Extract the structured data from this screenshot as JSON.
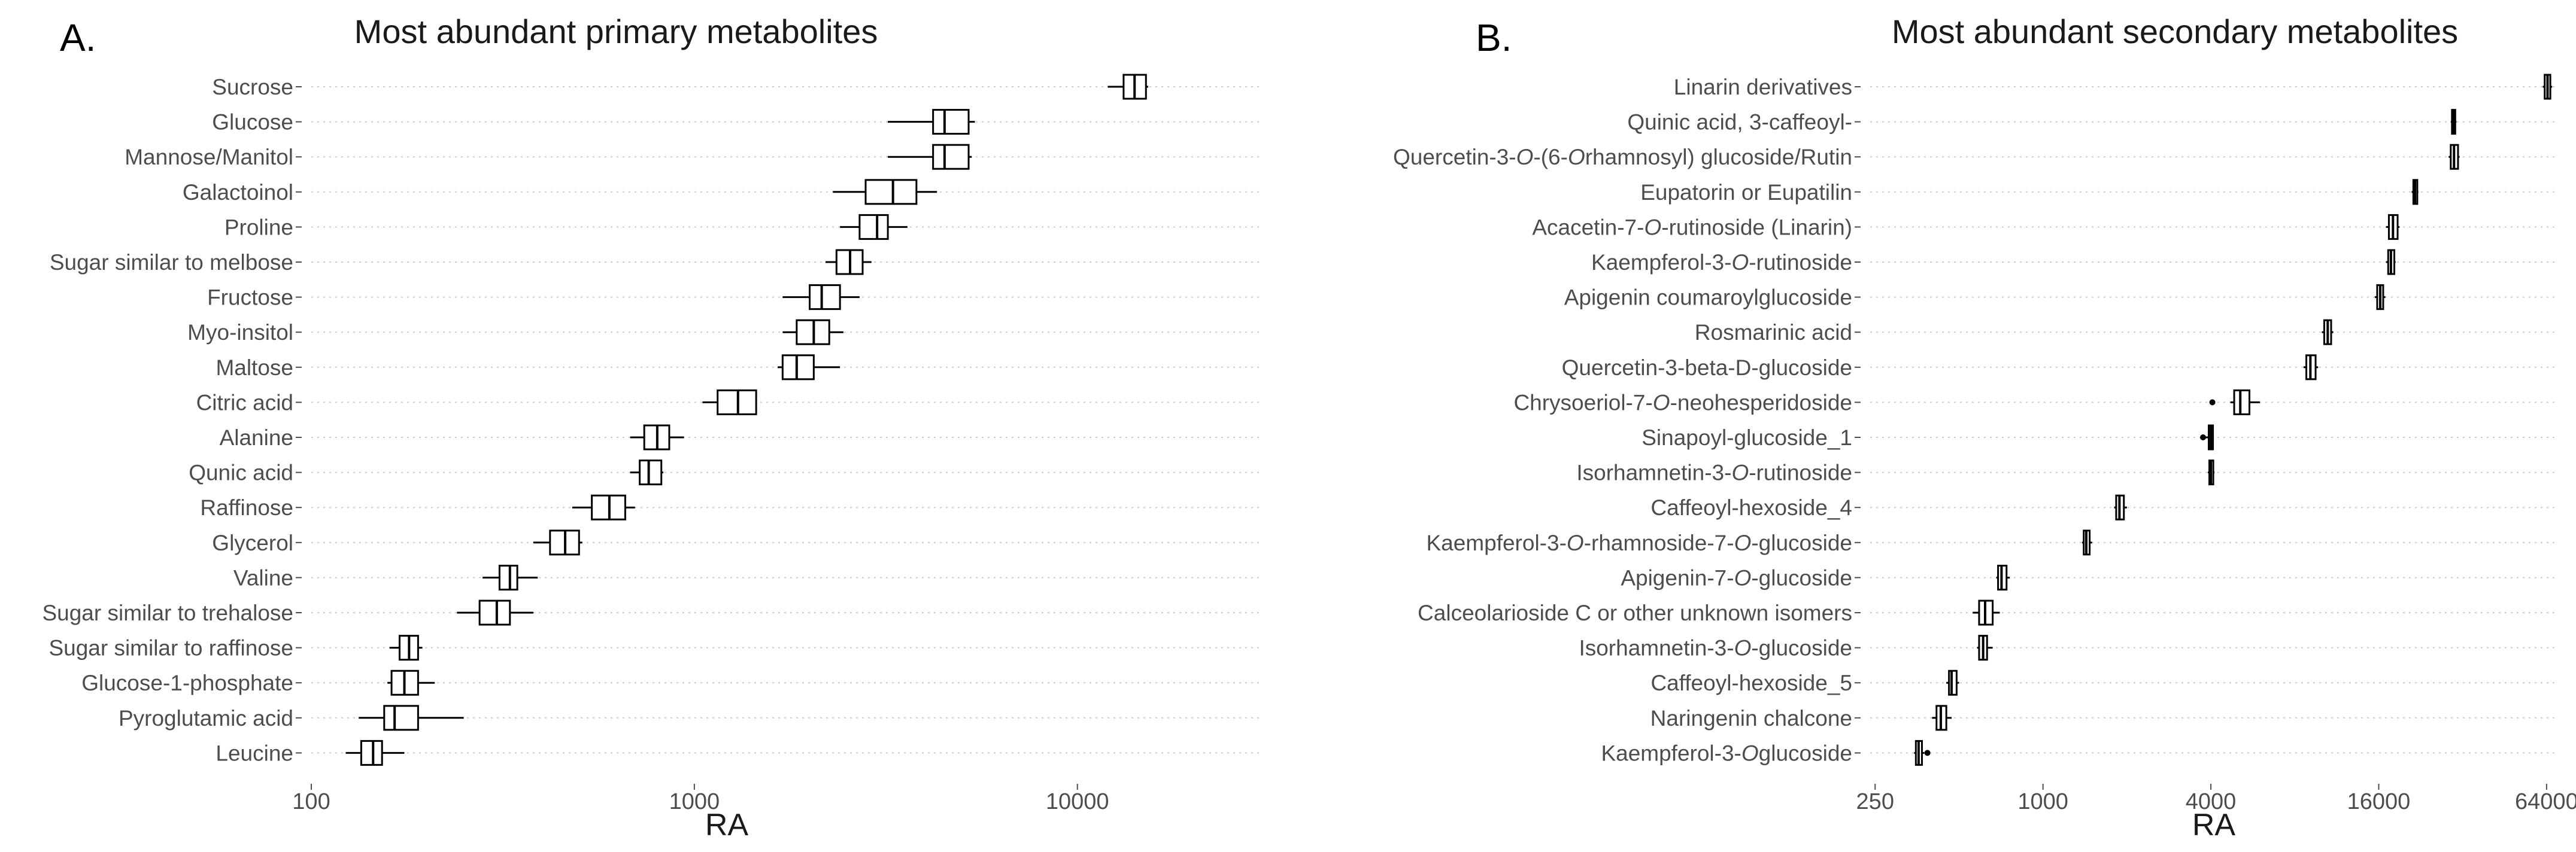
{
  "colors": {
    "background": "#ffffff",
    "grid": "#cccccc",
    "box_fill": "#ffffff",
    "box_stroke": "#000000",
    "text_dark": "#1a1a1a",
    "text_label": "#4d4d4d"
  },
  "chart_data": [
    {
      "type": "boxplot",
      "panel_label": "A.",
      "title": "Most abundant primary metabolites",
      "xlabel": "RA",
      "ylabel": "",
      "x_scale": "log10",
      "xlim": [
        100,
        30000
      ],
      "x_ticks": [
        100,
        1000,
        10000
      ],
      "x_tick_labels": [
        "100",
        "1000",
        "10000"
      ],
      "grid": "horizontal dotted",
      "categories": [
        "Sucrose",
        "Glucose",
        "Mannose/Manitol",
        "Galactoinol",
        "Proline",
        "Sugar similar to melbose",
        "Fructose",
        "Myo-insitol",
        "Maltose",
        "Citric acid",
        "Alanine",
        "Qunic acid",
        "Raffinose",
        "Glycerol",
        "Valine",
        "Sugar similar to trehalose",
        "Sugar similar to raffinose",
        "Glucose-1-phosphate",
        "Pyroglutamic acid",
        "Leucine"
      ],
      "boxes": [
        {
          "min": 12000,
          "q1": 13200,
          "median": 14100,
          "q3": 15100,
          "max": 15300,
          "outliers": []
        },
        {
          "min": 3200,
          "q1": 4200,
          "median": 4500,
          "q3": 5200,
          "max": 5400,
          "outliers": []
        },
        {
          "min": 3200,
          "q1": 4200,
          "median": 4500,
          "q3": 5200,
          "max": 5300,
          "outliers": []
        },
        {
          "min": 2300,
          "q1": 2800,
          "median": 3300,
          "q3": 3800,
          "max": 4300,
          "outliers": []
        },
        {
          "min": 2400,
          "q1": 2700,
          "median": 3000,
          "q3": 3200,
          "max": 3600,
          "outliers": []
        },
        {
          "min": 2200,
          "q1": 2350,
          "median": 2550,
          "q3": 2750,
          "max": 2900,
          "outliers": []
        },
        {
          "min": 1700,
          "q1": 2000,
          "median": 2150,
          "q3": 2400,
          "max": 2700,
          "outliers": []
        },
        {
          "min": 1700,
          "q1": 1850,
          "median": 2050,
          "q3": 2250,
          "max": 2450,
          "outliers": []
        },
        {
          "min": 1650,
          "q1": 1700,
          "median": 1850,
          "q3": 2050,
          "max": 2400,
          "outliers": []
        },
        {
          "min": 1050,
          "q1": 1150,
          "median": 1300,
          "q3": 1450,
          "max": 1450,
          "outliers": []
        },
        {
          "min": 680,
          "q1": 740,
          "median": 800,
          "q3": 860,
          "max": 940,
          "outliers": []
        },
        {
          "min": 680,
          "q1": 720,
          "median": 760,
          "q3": 820,
          "max": 830,
          "outliers": []
        },
        {
          "min": 480,
          "q1": 540,
          "median": 600,
          "q3": 660,
          "max": 700,
          "outliers": []
        },
        {
          "min": 380,
          "q1": 420,
          "median": 460,
          "q3": 500,
          "max": 510,
          "outliers": []
        },
        {
          "min": 280,
          "q1": 310,
          "median": 330,
          "q3": 345,
          "max": 390,
          "outliers": []
        },
        {
          "min": 240,
          "q1": 275,
          "median": 305,
          "q3": 330,
          "max": 380,
          "outliers": []
        },
        {
          "min": 160,
          "q1": 170,
          "median": 180,
          "q3": 190,
          "max": 195,
          "outliers": []
        },
        {
          "min": 158,
          "q1": 162,
          "median": 175,
          "q3": 190,
          "max": 210,
          "outliers": []
        },
        {
          "min": 133,
          "q1": 155,
          "median": 165,
          "q3": 190,
          "max": 250,
          "outliers": []
        },
        {
          "min": 123,
          "q1": 135,
          "median": 145,
          "q3": 153,
          "max": 175,
          "outliers": []
        }
      ]
    },
    {
      "type": "boxplot",
      "panel_label": "B.",
      "title": "Most abundant secondary metabolites",
      "xlabel": "RA",
      "ylabel": "",
      "x_scale": "log2",
      "xlim": [
        240,
        70000
      ],
      "x_ticks": [
        250,
        1000,
        4000,
        16000,
        64000
      ],
      "x_tick_labels": [
        "250",
        "1000",
        "4000",
        "16000",
        "64000"
      ],
      "grid": "horizontal dotted",
      "categories": [
        "Linarin derivatives",
        "Quinic acid, 3-caffeoyl-",
        "Quercetin-3-O-(6-O-rhamnosyl) glucoside/Rutin",
        "Eupatorin or Eupatilin",
        "Acacetin-7-O-rutinoside (Linarin)",
        "Kaempferol-3-O-rutinoside",
        "Apigenin coumaroylglucoside",
        "Rosmarinic acid",
        "Quercetin-3-beta-D-glucoside",
        "Chrysoeriol-7-O-neohesperidoside",
        "Sinapoyl-glucoside_1",
        "Isorhamnetin-3-O-rutinoside",
        "Caffeoyl-hexoside_4",
        "Kaempferol-3-O-rhamnoside-7-O-glucoside",
        "Apigenin-7-O-glucoside",
        "Calceolarioside C or other unknown isomers",
        "Isorhamnetin-3-O-glucoside",
        "Caffeoyl-hexoside_5",
        "Naringenin chalcone",
        "Kaempferol-3-O-glucoside"
      ],
      "category_labels": [
        [
          {
            "t": "Linarin derivatives"
          }
        ],
        [
          {
            "t": "Quinic acid, 3-caffeoyl-"
          }
        ],
        [
          {
            "t": "Quercetin-3-"
          },
          {
            "t": "O",
            "i": true
          },
          {
            "t": "-(6-"
          },
          {
            "t": "O",
            "i": true
          },
          {
            "t": "rhamnosyl) glucoside/Rutin"
          }
        ],
        [
          {
            "t": "Eupatorin or Eupatilin"
          }
        ],
        [
          {
            "t": "Acacetin-7-"
          },
          {
            "t": "O",
            "i": true
          },
          {
            "t": "-rutinoside (Linarin)"
          }
        ],
        [
          {
            "t": "Kaempferol-3-"
          },
          {
            "t": "O",
            "i": true
          },
          {
            "t": "-rutinoside"
          }
        ],
        [
          {
            "t": "Apigenin coumaroylglucoside"
          }
        ],
        [
          {
            "t": "Rosmarinic acid"
          }
        ],
        [
          {
            "t": "Quercetin-3-beta-D-glucoside"
          }
        ],
        [
          {
            "t": "Chrysoeriol-7-"
          },
          {
            "t": "O",
            "i": true
          },
          {
            "t": "-neohesperidoside"
          }
        ],
        [
          {
            "t": "Sinapoyl-glucoside_1"
          }
        ],
        [
          {
            "t": "Isorhamnetin-3-"
          },
          {
            "t": "O",
            "i": true
          },
          {
            "t": "-rutinoside"
          }
        ],
        [
          {
            "t": "Caffeoyl-hexoside_4"
          }
        ],
        [
          {
            "t": "Kaempferol-3-"
          },
          {
            "t": "O",
            "i": true
          },
          {
            "t": "-rhamnoside-7-"
          },
          {
            "t": "O",
            "i": true
          },
          {
            "t": "-glucoside"
          }
        ],
        [
          {
            "t": "Apigenin-7-"
          },
          {
            "t": "O",
            "i": true
          },
          {
            "t": "-glucoside"
          }
        ],
        [
          {
            "t": "Calceolarioside C or other unknown isomers"
          }
        ],
        [
          {
            "t": "Isorhamnetin-3-"
          },
          {
            "t": "O",
            "i": true
          },
          {
            "t": "-glucoside"
          }
        ],
        [
          {
            "t": "Caffeoyl-hexoside_5"
          }
        ],
        [
          {
            "t": "Naringenin chalcone"
          }
        ],
        [
          {
            "t": "Kaempferol-3-"
          },
          {
            "t": "O",
            "i": true
          },
          {
            "t": "glucoside"
          }
        ]
      ],
      "boxes": [
        {
          "min": 62000,
          "q1": 63000,
          "median": 64500,
          "q3": 66000,
          "max": 67000,
          "outliers": []
        },
        {
          "min": 29000,
          "q1": 29300,
          "median": 29700,
          "q3": 30100,
          "max": 30400,
          "outliers": []
        },
        {
          "min": 28500,
          "q1": 29000,
          "median": 29800,
          "q3": 30800,
          "max": 31200,
          "outliers": []
        },
        {
          "min": 21000,
          "q1": 21300,
          "median": 21600,
          "q3": 22000,
          "max": 22200,
          "outliers": []
        },
        {
          "min": 17000,
          "q1": 17400,
          "median": 18000,
          "q3": 18700,
          "max": 19000,
          "outliers": []
        },
        {
          "min": 17000,
          "q1": 17300,
          "median": 17700,
          "q3": 18200,
          "max": 18400,
          "outliers": []
        },
        {
          "min": 15500,
          "q1": 15800,
          "median": 16200,
          "q3": 16600,
          "max": 16900,
          "outliers": []
        },
        {
          "min": 10000,
          "q1": 10200,
          "median": 10500,
          "q3": 10800,
          "max": 11000,
          "outliers": []
        },
        {
          "min": 8600,
          "q1": 8800,
          "median": 9100,
          "q3": 9500,
          "max": 9700,
          "outliers": []
        },
        {
          "min": 4700,
          "q1": 4850,
          "median": 5100,
          "q3": 5500,
          "max": 6000,
          "outliers": [
            4050
          ]
        },
        {
          "min": 3800,
          "q1": 3930,
          "median": 4000,
          "q3": 4070,
          "max": 4100,
          "outliers": [
            3750
          ]
        },
        {
          "min": 3900,
          "q1": 3950,
          "median": 4000,
          "q3": 4080,
          "max": 4120,
          "outliers": []
        },
        {
          "min": 1800,
          "q1": 1830,
          "median": 1880,
          "q3": 1950,
          "max": 2000,
          "outliers": []
        },
        {
          "min": 1380,
          "q1": 1400,
          "median": 1430,
          "q3": 1470,
          "max": 1500,
          "outliers": []
        },
        {
          "min": 680,
          "q1": 690,
          "median": 710,
          "q3": 740,
          "max": 760,
          "outliers": []
        },
        {
          "min": 560,
          "q1": 590,
          "median": 620,
          "q3": 660,
          "max": 700,
          "outliers": []
        },
        {
          "min": 580,
          "q1": 590,
          "median": 610,
          "q3": 630,
          "max": 660,
          "outliers": []
        },
        {
          "min": 450,
          "q1": 460,
          "median": 470,
          "q3": 490,
          "max": 500,
          "outliers": []
        },
        {
          "min": 400,
          "q1": 415,
          "median": 430,
          "q3": 450,
          "max": 470,
          "outliers": []
        },
        {
          "min": 345,
          "q1": 350,
          "median": 358,
          "q3": 368,
          "max": 375,
          "outliers": [
            385
          ]
        }
      ]
    }
  ]
}
